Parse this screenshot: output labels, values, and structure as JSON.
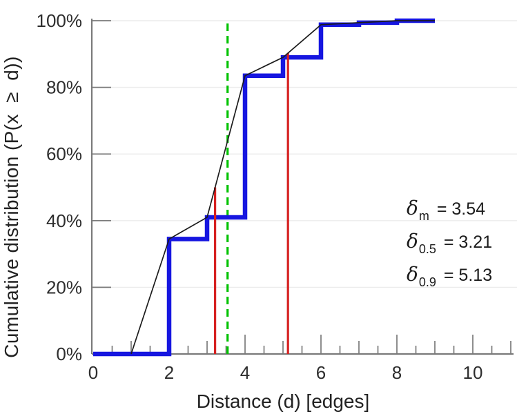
{
  "figure": {
    "xlabel": "Distance (d) [edges]",
    "ylabel": "Cumulative distribution (P(x  ≥  d))"
  },
  "chart_data": {
    "type": "line",
    "subtype": "step-cdf",
    "title": "",
    "xlabel": "Distance (d) [edges]",
    "ylabel": "Cumulative distribution (P(x ≥ d))",
    "x_axis": {
      "min": 0,
      "max": 11,
      "major_ticks": [
        0,
        2,
        4,
        6,
        8,
        10
      ],
      "major_tick_labels": [
        "0",
        "2",
        "4",
        "6",
        "8",
        "10"
      ],
      "mid_ticks": [
        1,
        3,
        5,
        7,
        9,
        11
      ],
      "minor_ticks": [
        0.5,
        1.5,
        2.5,
        3.5,
        4.5,
        5.5,
        6.5,
        7.5,
        8.5,
        9.5,
        10.5
      ]
    },
    "y_axis": {
      "min_pct": 0,
      "max_pct": 100,
      "ticks_pct": [
        0,
        20,
        40,
        60,
        80,
        100
      ],
      "tick_labels": [
        "0%",
        "20%",
        "40%",
        "60%",
        "80%",
        "100%"
      ],
      "gridlines_pct": [
        20,
        40,
        60,
        80,
        100
      ]
    },
    "series": [
      {
        "name": "empirical-cdf-step",
        "type": "step",
        "color": "#1616e0",
        "line_width": 6.5,
        "start": [
          0,
          0
        ],
        "end_x": 9,
        "points": [
          [
            2,
            34.5
          ],
          [
            3,
            41
          ],
          [
            4,
            83.5
          ],
          [
            5,
            89
          ],
          [
            6,
            98.8
          ],
          [
            7,
            99.4
          ],
          [
            8,
            100
          ]
        ]
      },
      {
        "name": "linear-interpolation",
        "type": "line",
        "color": "#1c1c1c",
        "line_width": 1.7,
        "points": [
          [
            1,
            0
          ],
          [
            2,
            34.5
          ],
          [
            3,
            41
          ],
          [
            4,
            83.5
          ],
          [
            5,
            89
          ],
          [
            6,
            98.8
          ],
          [
            7,
            99.4
          ],
          [
            8,
            100
          ],
          [
            9,
            100
          ]
        ]
      }
    ],
    "vlines": [
      {
        "name": "mean-delta-m",
        "x": 3.54,
        "top_pct": 100,
        "color": "#00c200",
        "style": "dashed"
      },
      {
        "name": "median-delta-0-5",
        "x": 3.21,
        "top_pct": 50,
        "color": "#d62121",
        "style": "solid"
      },
      {
        "name": "p90-delta-0-9",
        "x": 5.13,
        "top_pct": 90.3,
        "color": "#d62121",
        "style": "solid"
      }
    ],
    "stats": {
      "delta_m": "3.54",
      "delta_0_5": "3.21",
      "delta_0_9": "5.13"
    },
    "annotations": [
      {
        "symbol": "δ",
        "sub": "m",
        "value": "= 3.54"
      },
      {
        "symbol": "δ",
        "sub": "0.5",
        "value": "= 3.21"
      },
      {
        "symbol": "δ",
        "sub": "0.9",
        "value": "= 5.13"
      }
    ],
    "grid": {
      "horizontal": true,
      "vertical": false
    },
    "legend": {
      "visible": false
    },
    "colors": {
      "step_line": "#1616e0",
      "interp_line": "#1c1c1c",
      "percentile_lines": "#d62121",
      "mean_line": "#00c200",
      "grid": "#ececec",
      "axis": "#7a7a7a",
      "text": "#2d2d2d"
    }
  }
}
